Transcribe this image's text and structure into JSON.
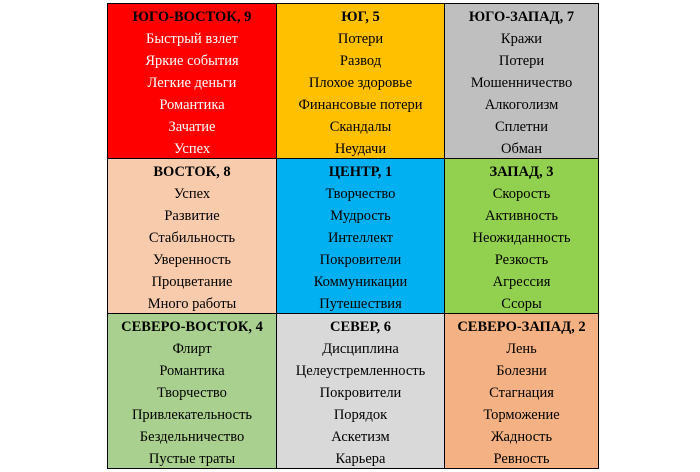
{
  "cells": [
    {
      "title": "ЮГО-ВОСТОК, 9",
      "color": "#ff0000",
      "text_color": "#ffffff",
      "items": [
        "Быстрый взлет",
        "Яркие события",
        "Легкие деньги",
        "Романтика",
        "Зачатие",
        "Успех"
      ]
    },
    {
      "title": "ЮГ, 5",
      "color": "#ffc000",
      "text_color": "#000000",
      "items": [
        "Потери",
        "Развод",
        "Плохое здоровье",
        "Финансовые потери",
        "Скандалы",
        "Неудачи"
      ]
    },
    {
      "title": "ЮГО-ЗАПАД, 7",
      "color": "#bfbfbf",
      "text_color": "#000000",
      "items": [
        "Кражи",
        "Потери",
        "Мошенничество",
        "Алкоголизм",
        "Сплетни",
        "Обман"
      ]
    },
    {
      "title": "ВОСТОК, 8",
      "color": "#f8cbad",
      "text_color": "#000000",
      "items": [
        "Успех",
        "Развитие",
        "Стабильность",
        "Уверенность",
        "Процветание",
        "Много работы"
      ]
    },
    {
      "title": "ЦЕНТР, 1",
      "color": "#00b0f0",
      "text_color": "#000000",
      "items": [
        "Творчество",
        "Мудрость",
        "Интеллект",
        "Покровители",
        "Коммуникации",
        "Путешествия"
      ]
    },
    {
      "title": "ЗАПАД, 3",
      "color": "#92d050",
      "text_color": "#000000",
      "items": [
        "Скорость",
        "Активность",
        "Неожиданность",
        "Резкость",
        "Агрессия",
        "Ссоры"
      ]
    },
    {
      "title": "СЕВЕРО-ВОСТОК, 4",
      "color": "#a9d08e",
      "text_color": "#000000",
      "items": [
        "Флирт",
        "Романтика",
        "Творчество",
        "Привлекательность",
        "Бездельничество",
        "Пустые траты"
      ]
    },
    {
      "title": "СЕВЕР, 6",
      "color": "#d9d9d9",
      "text_color": "#000000",
      "items": [
        "Дисциплина",
        "Целеустремленность",
        "Покровители",
        "Порядок",
        "Аскетизм",
        "Карьера"
      ]
    },
    {
      "title": "СЕВЕРО-ЗАПАД, 2",
      "color": "#f4b183",
      "text_color": "#000000",
      "items": [
        "Лень",
        "Болезни",
        "Стагнация",
        "Торможение",
        "Жадность",
        "Ревность"
      ]
    }
  ]
}
